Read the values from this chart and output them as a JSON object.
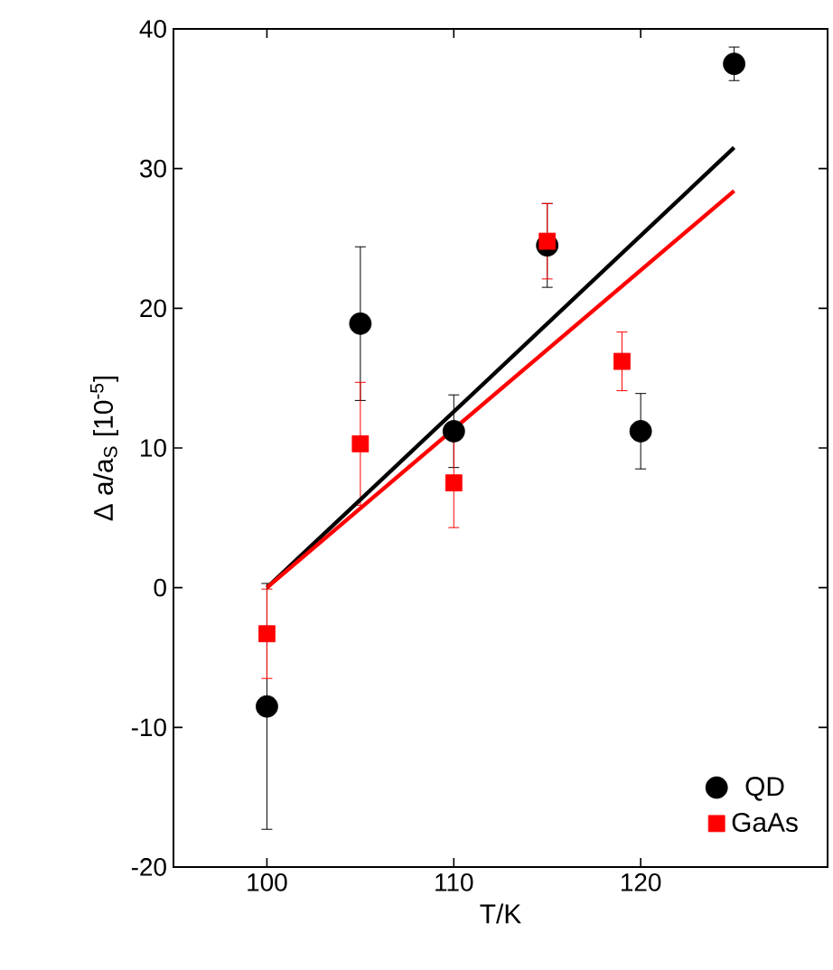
{
  "chart_data": {
    "type": "scatter",
    "xlabel": "T/K",
    "ylabel": "Δ a/a$_{S}$ [10$^{-5}$]",
    "xlim": [
      95,
      130
    ],
    "ylim": [
      -20,
      40
    ],
    "xticks": [
      100,
      110,
      120
    ],
    "yticks": [
      -20,
      -10,
      0,
      10,
      20,
      30,
      40
    ],
    "legend": "bottom right",
    "grid": false,
    "series": [
      {
        "name": "QD",
        "marker": "circle",
        "color": "#000000",
        "x": [
          100,
          105,
          110,
          115,
          120,
          125
        ],
        "values": [
          -8.5,
          18.9,
          11.2,
          24.5,
          11.2,
          37.5
        ],
        "errors": [
          8.8,
          5.5,
          2.6,
          3,
          2.7,
          1.2
        ]
      },
      {
        "name": "GaAs",
        "marker": "square",
        "color": "#ff0000",
        "x": [
          100,
          105,
          110,
          115,
          119
        ],
        "values": [
          -3.3,
          10.3,
          7.5,
          24.8,
          16.2
        ],
        "errors": [
          3.2,
          4.4,
          3.2,
          2.7,
          2.1
        ]
      },
      {
        "type": "line",
        "color": "#000000",
        "x": [
          100,
          125
        ],
        "values": [
          0,
          31.5
        ]
      },
      {
        "type": "line",
        "color": "#ff0000",
        "x": [
          100,
          125
        ],
        "values": [
          0,
          28.4
        ]
      }
    ]
  }
}
